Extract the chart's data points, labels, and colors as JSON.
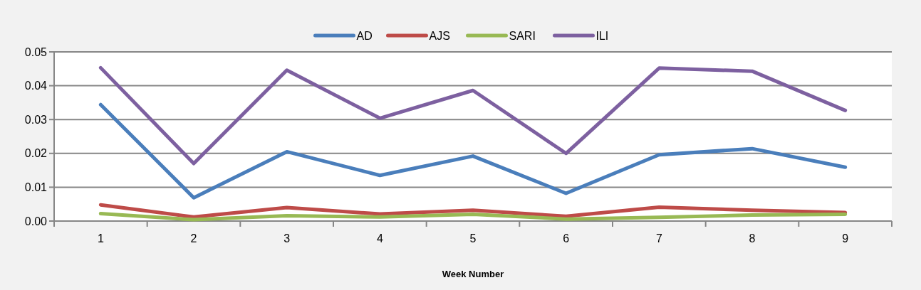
{
  "chart_data": {
    "type": "line",
    "xlabel": "Week Number",
    "categories": [
      "1",
      "2",
      "3",
      "4",
      "5",
      "6",
      "7",
      "8",
      "9"
    ],
    "ylim": [
      0,
      0.05
    ],
    "yticks": [
      {
        "value": 0,
        "label": "0.00"
      },
      {
        "value": 0.01,
        "label": "0.01"
      },
      {
        "value": 0.02,
        "label": "0.02"
      },
      {
        "value": 0.03,
        "label": "0.03"
      },
      {
        "value": 0.04,
        "label": "0.04"
      },
      {
        "value": 0.05,
        "label": "0.05"
      }
    ],
    "grid": "y",
    "legend": "top",
    "marker": "none",
    "line_style": "solid",
    "series": [
      {
        "name": "AD",
        "color": "#4a7ebb",
        "values": [
          0.0344,
          0.0069,
          0.0205,
          0.0135,
          0.0192,
          0.0082,
          0.0196,
          0.0214,
          0.0159
        ]
      },
      {
        "name": "AJS",
        "color": "#be4b48",
        "values": [
          0.0048,
          0.0012,
          0.004,
          0.0021,
          0.0032,
          0.0014,
          0.0041,
          0.0032,
          0.0025
        ]
      },
      {
        "name": "SARI",
        "color": "#98b954",
        "values": [
          0.0022,
          0.0004,
          0.0016,
          0.0012,
          0.002,
          0.0006,
          0.0011,
          0.0018,
          0.002
        ]
      },
      {
        "name": "ILI",
        "color": "#7d60a0",
        "values": [
          0.0453,
          0.017,
          0.0446,
          0.0304,
          0.0386,
          0.02,
          0.0452,
          0.0443,
          0.0327
        ]
      }
    ]
  }
}
